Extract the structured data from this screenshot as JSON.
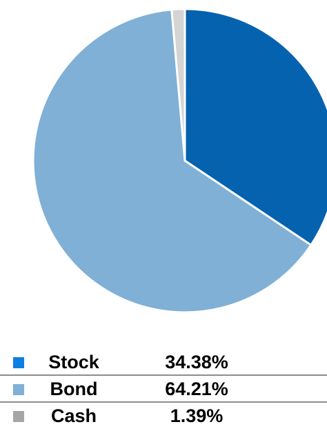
{
  "chart_data": {
    "type": "pie",
    "categories": [
      "Stock",
      "Bond",
      "Cash"
    ],
    "values": [
      34.38,
      64.21,
      1.39
    ],
    "value_labels": [
      "34.38%",
      "64.21%",
      "1.39%"
    ],
    "slice_colors": [
      "#0562ae",
      "#80b0d6",
      "#d4d4d4"
    ],
    "legend_colors": [
      "#0c7fe0",
      "#80b0d6",
      "#a6a6a6"
    ],
    "legend_placement": "bottom"
  }
}
